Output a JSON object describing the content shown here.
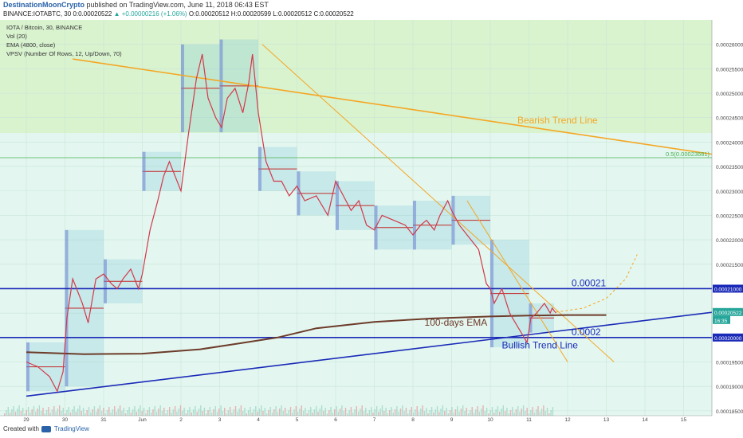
{
  "header": {
    "author": "DestinationMoonCrypto",
    "published_text": "published on TradingView.com, June 11, 2018 06:43 EST",
    "symbol": "BINANCE:IOTABTC, 30",
    "open_label": "0:",
    "open_value": "0.00020522",
    "change_text": "▲ +0.00000216 (+1.06%)",
    "o_label": "O:",
    "o_value": "0.00020512",
    "h_label": "H:",
    "h_value": "0.00020599",
    "l_label": "L:",
    "l_value": "0.00020512",
    "c_label": "C:",
    "c_value": "0.00020522"
  },
  "legend": {
    "title": "IOTA / Bitcoin, 30, BINANCE",
    "vol": "Vol (20)",
    "ema": "EMA (4800, close)",
    "vpsv": "VPSV (Number Of Rows, 12, Up/Down, 70)"
  },
  "footer": {
    "created_with": "Created with",
    "brand": "TradingView"
  },
  "chart_data": {
    "type": "line",
    "title": "IOTA / Bitcoin, 30, BINANCE",
    "x_tick_labels": [
      "29",
      "30",
      "31",
      "Jun",
      "2",
      "3",
      "4",
      "5",
      "6",
      "7",
      "8",
      "9",
      "10",
      "11",
      "12",
      "13",
      "14",
      "15"
    ],
    "y_tick_labels": [
      "0.00026000",
      "0.00025500",
      "0.00025000",
      "0.00024500",
      "0.00024000",
      "0.00023500",
      "0.00023000",
      "0.00022500",
      "0.00022000",
      "0.00021500",
      "0.00021000",
      "0.00020500",
      "0.00020000",
      "0.00019500",
      "0.00019000",
      "0.00018500"
    ],
    "ylim": [
      0.000184,
      0.000265
    ],
    "xlim": [
      0,
      18.6
    ],
    "series": [
      {
        "name": "IOTABTC",
        "x": [
          0.0,
          0.3,
          0.6,
          0.8,
          0.95,
          1.05,
          1.2,
          1.45,
          1.6,
          1.8,
          2.0,
          2.2,
          2.35,
          2.5,
          2.7,
          2.9,
          3.0,
          3.2,
          3.4,
          3.55,
          3.7,
          3.85,
          4.0,
          4.2,
          4.4,
          4.55,
          4.7,
          4.9,
          5.05,
          5.2,
          5.4,
          5.6,
          5.75,
          5.85,
          6.0,
          6.2,
          6.4,
          6.6,
          6.8,
          7.0,
          7.2,
          7.5,
          7.8,
          8.0,
          8.2,
          8.4,
          8.6,
          8.8,
          9.0,
          9.2,
          9.5,
          9.8,
          10.0,
          10.2,
          10.35,
          10.55,
          10.7,
          10.9,
          11.0,
          11.2,
          11.4,
          11.5,
          11.7,
          11.9,
          12.0,
          12.1,
          12.3,
          12.5,
          12.65,
          12.8,
          12.95,
          13.05,
          13.2,
          13.4,
          13.55,
          13.6,
          13.7
        ],
        "values": [
          0.000195,
          0.000194,
          0.000192,
          0.000189,
          0.000193,
          0.000204,
          0.000212,
          0.000207,
          0.000203,
          0.000212,
          0.000213,
          0.000211,
          0.00021,
          0.000212,
          0.000214,
          0.00021,
          0.000213,
          0.000222,
          0.000228,
          0.000233,
          0.000236,
          0.000233,
          0.00023,
          0.000242,
          0.000253,
          0.000258,
          0.000249,
          0.000245,
          0.000243,
          0.000249,
          0.000251,
          0.000246,
          0.000252,
          0.000258,
          0.000246,
          0.000236,
          0.000232,
          0.000232,
          0.000229,
          0.000231,
          0.000228,
          0.000229,
          0.000225,
          0.000232,
          0.000229,
          0.000226,
          0.000228,
          0.000223,
          0.000222,
          0.000225,
          0.000224,
          0.000223,
          0.000221,
          0.000223,
          0.000224,
          0.000222,
          0.000225,
          0.000228,
          0.000226,
          0.000223,
          0.000221,
          0.00022,
          0.000218,
          0.000211,
          0.00021,
          0.000207,
          0.00021,
          0.000205,
          0.000203,
          0.000201,
          0.000199,
          0.000204,
          0.000205,
          0.000207,
          0.000205,
          0.000206,
          0.000205
        ]
      }
    ],
    "ema_100d": {
      "name": "100-days EMA",
      "x": [
        0,
        1.5,
        3,
        4.5,
        5.5,
        6.5,
        7.5,
        9,
        10.5,
        12,
        13,
        14,
        15
      ],
      "values": [
        0.000197,
        0.0001966,
        0.0001967,
        0.0001976,
        0.0001988,
        0.0002,
        0.0002019,
        0.0002032,
        0.0002039,
        0.0002043,
        0.0002045,
        0.0002046,
        0.0002046
      ]
    },
    "horizontal_levels": [
      {
        "label": "0.00021",
        "axis_label": "0.00021000",
        "value": 0.00021,
        "color": "#1a2ab8"
      },
      {
        "label": "0.0002",
        "axis_label": "0.00020000",
        "value": 0.0002,
        "color": "#1a2ab8"
      },
      {
        "label": "0.5(0.00023681)",
        "value": 0.00023681,
        "color": "#4caf50"
      }
    ],
    "current_price_label": "0.00020522",
    "countdown_label": "16:35",
    "trend_lines": [
      {
        "name": "Bearish Trend Line",
        "color": "#f5a623",
        "x": [
          1.2,
          18.6
        ],
        "values": [
          0.000257,
          0.0002365
        ]
      },
      {
        "name": "Bullish Trend Line",
        "color": "#1a2ab8",
        "x": [
          0,
          18.6
        ],
        "values": [
          0.000188,
          0.000206
        ]
      },
      {
        "name": "",
        "color": "#f5a623",
        "x": [
          6.1,
          15.2
        ],
        "values": [
          0.00026,
          0.000195
        ]
      },
      {
        "name": "",
        "color": "#f5a623",
        "x": [
          11.4,
          14.0
        ],
        "values": [
          0.000228,
          0.000195
        ]
      }
    ],
    "projection": {
      "color": "#f5a623",
      "x": [
        13.7,
        14.4,
        15.0,
        15.5,
        15.8
      ],
      "values": [
        0.0002052,
        0.000206,
        0.000208,
        0.000212,
        0.000217
      ]
    },
    "legend_placement": "top-left",
    "grid": true
  }
}
